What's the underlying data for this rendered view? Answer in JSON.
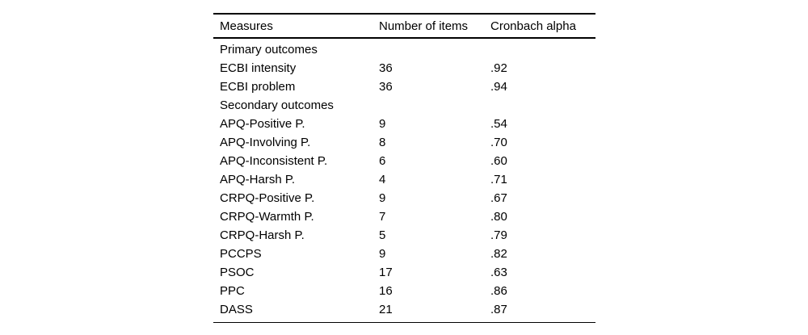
{
  "colors": {
    "background": "#ffffff",
    "text": "#000000",
    "rule": "#000000"
  },
  "table": {
    "headers": {
      "measures": "Measures",
      "items": "Number of items",
      "alpha": "Cronbach alpha"
    },
    "rows": [
      {
        "measure": "Primary outcomes",
        "items": "",
        "alpha": ""
      },
      {
        "measure": "ECBI intensity",
        "items": "36",
        "alpha": ".92"
      },
      {
        "measure": "ECBI problem",
        "items": "36",
        "alpha": ".94"
      },
      {
        "measure": "Secondary outcomes",
        "items": "",
        "alpha": ""
      },
      {
        "measure": "APQ-Positive P.",
        "items": "9",
        "alpha": ".54"
      },
      {
        "measure": "APQ-Involving P.",
        "items": "8",
        "alpha": ".70"
      },
      {
        "measure": "APQ-Inconsistent P.",
        "items": "6",
        "alpha": ".60"
      },
      {
        "measure": "APQ-Harsh P.",
        "items": "4",
        "alpha": ".71"
      },
      {
        "measure": "CRPQ-Positive P.",
        "items": "9",
        "alpha": ".67"
      },
      {
        "measure": "CRPQ-Warmth P.",
        "items": "7",
        "alpha": ".80"
      },
      {
        "measure": "CRPQ-Harsh P.",
        "items": "5",
        "alpha": ".79"
      },
      {
        "measure": "PCCPS",
        "items": "9",
        "alpha": ".82"
      },
      {
        "measure": "PSOC",
        "items": "17",
        "alpha": ".63"
      },
      {
        "measure": "PPC",
        "items": "16",
        "alpha": ".86"
      },
      {
        "measure": "DASS",
        "items": "21",
        "alpha": ".87"
      }
    ]
  }
}
